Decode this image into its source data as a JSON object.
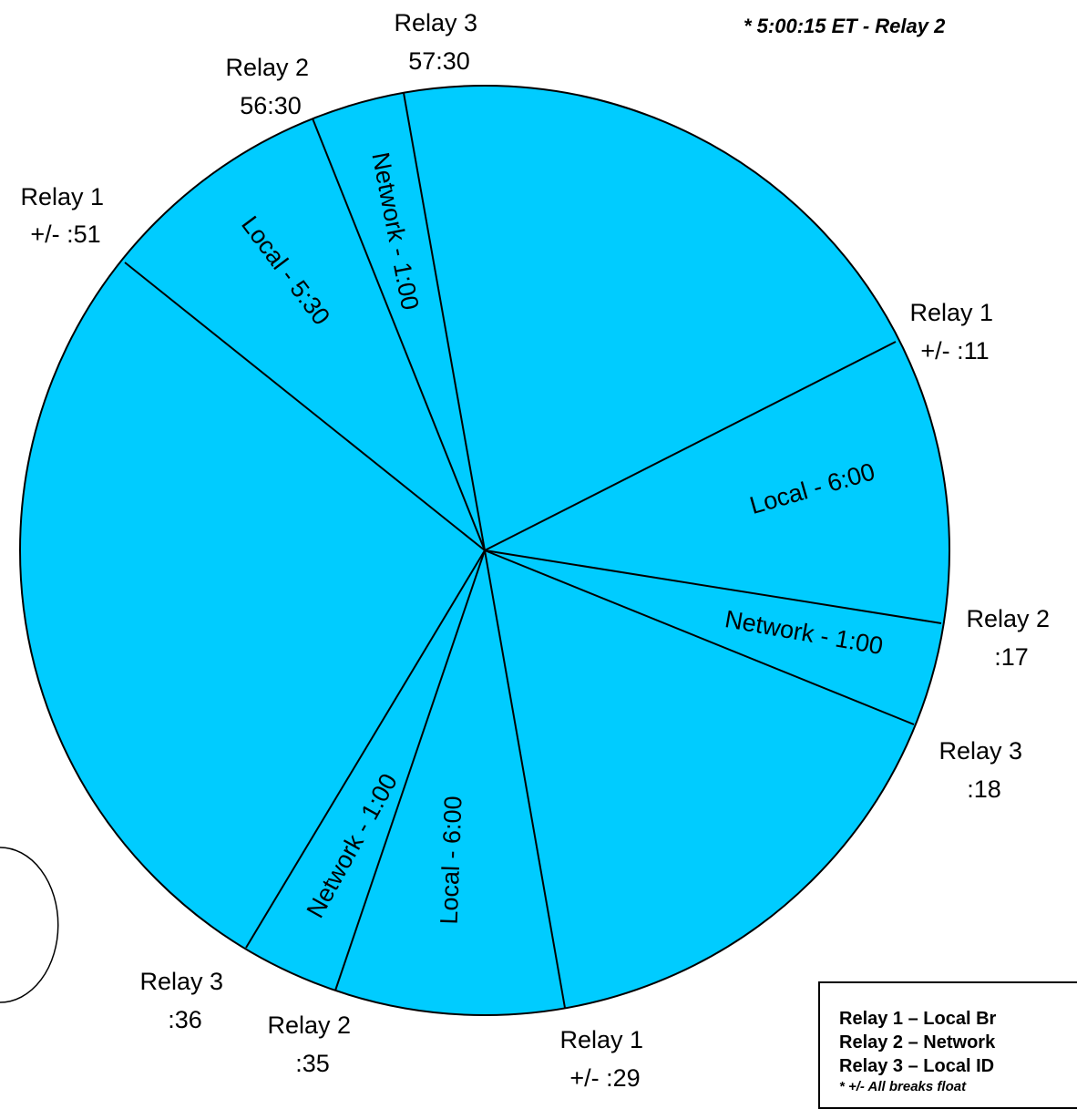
{
  "note": "* 5:00:15 ET - Relay 2",
  "colors": {
    "fill": "#00CCFF",
    "stroke": "#000000"
  },
  "markers": {
    "m1": [
      "Relay 3",
      "57:30"
    ],
    "m2": [
      "Relay 2",
      "56:30"
    ],
    "m3": [
      "Relay 1",
      "+/- :51"
    ],
    "m4": [
      "Relay 1",
      "+/- :11"
    ],
    "m5": [
      "Relay 2",
      ":17"
    ],
    "m6": [
      "Relay 3",
      ":18"
    ],
    "m7": [
      "Relay 1",
      "+/- :29"
    ],
    "m8": [
      "Relay 2",
      ":35"
    ],
    "m9": [
      "Relay 3",
      ":36"
    ]
  },
  "segments": {
    "s1": "Network - 1:00",
    "s2": "Local - 5:30",
    "s3": "Local - 6:00",
    "s4": "Network - 1:00",
    "s5": "Local - 6:00",
    "s6": "Network - 1:00"
  },
  "legend": {
    "row1": "Relay 1 – Local Br",
    "row2": "Relay 2 – Network",
    "row3": "Relay 3 – Local ID",
    "foot": "* +/- All breaks float"
  }
}
